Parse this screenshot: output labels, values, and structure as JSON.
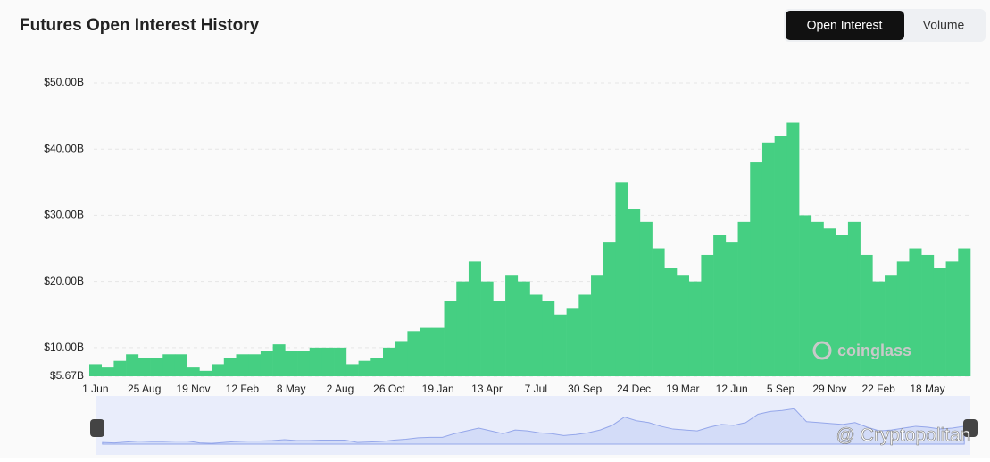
{
  "chart_data": {
    "type": "bar",
    "title": "Futures Open Interest History",
    "categories": [
      "1 Jun",
      null,
      null,
      null,
      "25 Aug",
      null,
      null,
      null,
      "19 Nov",
      null,
      null,
      null,
      "12 Feb",
      null,
      null,
      null,
      "8 May",
      null,
      null,
      null,
      "2 Aug",
      null,
      null,
      null,
      "26 Oct",
      null,
      null,
      null,
      "19 Jan",
      null,
      null,
      null,
      "13 Apr",
      null,
      null,
      null,
      "7 Jul",
      null,
      null,
      null,
      "30 Sep",
      null,
      null,
      null,
      "24 Dec",
      null,
      null,
      null,
      "19 Mar",
      null,
      null,
      null,
      "12 Jun",
      null,
      null,
      null,
      "5 Sep",
      null,
      null,
      null,
      "29 Nov",
      null,
      null,
      null,
      "22 Feb",
      null,
      null,
      null,
      "18 May",
      null,
      null,
      null
    ],
    "values": [
      7.5,
      7,
      8,
      9,
      8.5,
      8.5,
      9,
      9,
      7,
      6.5,
      7.5,
      8.5,
      9,
      9,
      9.5,
      10.5,
      9.5,
      9.5,
      10,
      10,
      10,
      7.5,
      8,
      8.5,
      10,
      11,
      12.5,
      13,
      13,
      17,
      20,
      23,
      20,
      17,
      21,
      20,
      18,
      17,
      15,
      16,
      18,
      21,
      26,
      35,
      31,
      29,
      25,
      22,
      21,
      20,
      24,
      27,
      26,
      29,
      38,
      41,
      42,
      44,
      30,
      29,
      28,
      27,
      29,
      24,
      20,
      21,
      23,
      25,
      24,
      22,
      23,
      25
    ],
    "color": "#45cf82",
    "ylim": [
      5.67,
      50
    ],
    "yticks": [
      {
        "value": 5.67,
        "label": "$5.67B"
      },
      {
        "value": 10,
        "label": "$10.00B"
      },
      {
        "value": 20,
        "label": "$20.00B"
      },
      {
        "value": 30,
        "label": "$30.00B"
      },
      {
        "value": 40,
        "label": "$40.00B"
      },
      {
        "value": 50,
        "label": "$50.00B"
      }
    ],
    "grid": true
  },
  "tabs": [
    "Open Interest",
    "Volume"
  ],
  "watermarks": [
    "coinglass",
    "@ Cryptopolitan"
  ]
}
